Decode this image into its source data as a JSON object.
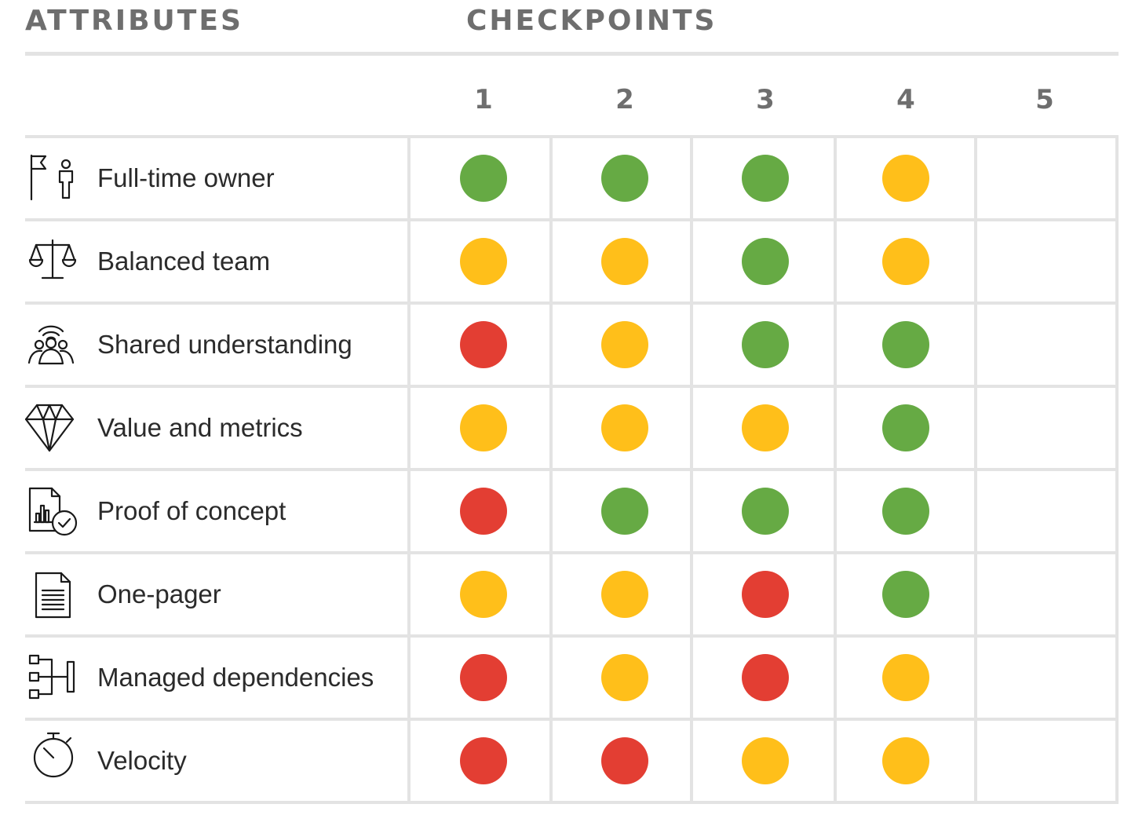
{
  "header": {
    "attributes_label": "ATTRIBUTES",
    "checkpoints_label": "CHECKPOINTS"
  },
  "colors": {
    "green": "#66aa44",
    "yellow": "#ffbf1a",
    "red": "#e33e33",
    "header_text": "#6e6e6e",
    "label_text": "#2b2b2b",
    "grid": "#e3e3e3"
  },
  "chart_data": {
    "type": "table",
    "columns": [
      "1",
      "2",
      "3",
      "4",
      "5"
    ],
    "rows": [
      {
        "label": "Full-time owner",
        "icon": "flag-person-icon",
        "statuses": [
          "green",
          "green",
          "green",
          "yellow",
          null
        ]
      },
      {
        "label": "Balanced team",
        "icon": "scales-icon",
        "statuses": [
          "yellow",
          "yellow",
          "green",
          "yellow",
          null
        ]
      },
      {
        "label": "Shared understanding",
        "icon": "group-signal-icon",
        "statuses": [
          "red",
          "yellow",
          "green",
          "green",
          null
        ]
      },
      {
        "label": "Value and metrics",
        "icon": "diamond-icon",
        "statuses": [
          "yellow",
          "yellow",
          "yellow",
          "green",
          null
        ]
      },
      {
        "label": "Proof of concept",
        "icon": "document-chart-check-icon",
        "statuses": [
          "red",
          "green",
          "green",
          "green",
          null
        ]
      },
      {
        "label": "One-pager",
        "icon": "document-icon",
        "statuses": [
          "yellow",
          "yellow",
          "red",
          "green",
          null
        ]
      },
      {
        "label": "Managed dependencies",
        "icon": "dependency-tree-icon",
        "statuses": [
          "red",
          "yellow",
          "red",
          "yellow",
          null
        ]
      },
      {
        "label": "Velocity",
        "icon": "stopwatch-icon",
        "statuses": [
          "red",
          "red",
          "yellow",
          "yellow",
          null
        ]
      }
    ]
  }
}
